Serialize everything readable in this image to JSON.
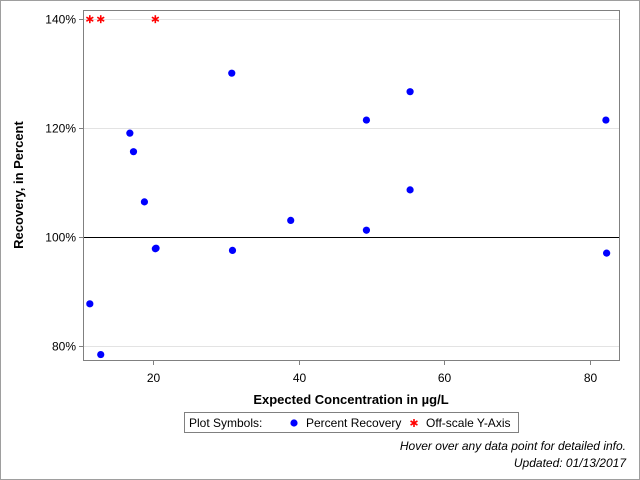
{
  "chart_data": {
    "type": "scatter",
    "title": "",
    "xlabel": "Expected Concentration in µg/L",
    "ylabel": "Recovery, in Percent",
    "xlim": [
      10.5,
      84
    ],
    "ylim": [
      77.5,
      141.5
    ],
    "x_ticks": [
      20,
      40,
      60,
      80
    ],
    "x_tick_labels": [
      "20",
      "40",
      "60",
      "80"
    ],
    "y_ticks": [
      80,
      100,
      120,
      140
    ],
    "y_tick_labels": [
      "80%",
      "100%",
      "120%",
      "140%"
    ],
    "grid": "horizontal",
    "reference_line_y": 100,
    "reference_line_color": "#000000",
    "series": [
      {
        "name": "Percent Recovery",
        "marker": "filled-circle",
        "color": "#0000ff",
        "points": [
          {
            "x": 11.3,
            "y": 87.8
          },
          {
            "x": 12.8,
            "y": 78.5
          },
          {
            "x": 16.8,
            "y": 119.1
          },
          {
            "x": 17.3,
            "y": 115.7
          },
          {
            "x": 18.8,
            "y": 106.5
          },
          {
            "x": 20.3,
            "y": 97.9
          },
          {
            "x": 20.4,
            "y": 98.0
          },
          {
            "x": 30.8,
            "y": 130.1
          },
          {
            "x": 30.9,
            "y": 97.6
          },
          {
            "x": 38.9,
            "y": 103.1
          },
          {
            "x": 49.3,
            "y": 121.5
          },
          {
            "x": 49.3,
            "y": 101.3
          },
          {
            "x": 55.3,
            "y": 126.7
          },
          {
            "x": 55.3,
            "y": 108.7
          },
          {
            "x": 82.2,
            "y": 121.5
          },
          {
            "x": 82.3,
            "y": 97.1
          }
        ]
      },
      {
        "name": "Off-scale Y-Axis",
        "marker": "asterisk",
        "color": "#ff0000",
        "points": [
          {
            "x": 11.3,
            "y": 140
          },
          {
            "x": 12.8,
            "y": 140
          },
          {
            "x": 20.3,
            "y": 140
          }
        ]
      }
    ]
  },
  "legend": {
    "label": "Plot Symbols:",
    "items": [
      {
        "name": "Percent Recovery",
        "symbol": "filled-circle",
        "color": "#0000ff"
      },
      {
        "name": "Off-scale Y-Axis",
        "symbol": "asterisk",
        "color": "#ff0000"
      }
    ]
  },
  "footnotes": {
    "hover_hint": "Hover over any data point for detailed info.",
    "updated": "Updated: 01/13/2017"
  }
}
